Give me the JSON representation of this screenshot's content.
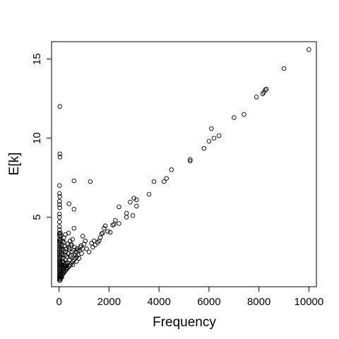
{
  "chart_data": {
    "type": "scatter",
    "title": "",
    "xlabel": "Frequency",
    "ylabel": "E[k]",
    "xlim": [
      -300,
      10300
    ],
    "ylim": [
      0.6,
      16.1
    ],
    "xticks": [
      0,
      2000,
      4000,
      6000,
      8000,
      10000
    ],
    "yticks": [
      5,
      10,
      15
    ],
    "grid": false,
    "marker": "open-circle",
    "colors": {
      "point": "#000000",
      "axis": "#000000",
      "background": "#ffffff"
    },
    "points": [
      [
        10000,
        15.6
      ],
      [
        9000,
        14.4
      ],
      [
        8300,
        13.1
      ],
      [
        8250,
        13.05
      ],
      [
        8200,
        12.9
      ],
      [
        8150,
        12.8
      ],
      [
        7900,
        12.6
      ],
      [
        7400,
        11.5
      ],
      [
        7000,
        11.3
      ],
      [
        6400,
        10.15
      ],
      [
        6200,
        10.0
      ],
      [
        6100,
        10.6
      ],
      [
        6000,
        9.8
      ],
      [
        5800,
        9.35
      ],
      [
        5250,
        8.65
      ],
      [
        5250,
        8.55
      ],
      [
        4500,
        8.0
      ],
      [
        4300,
        7.45
      ],
      [
        4200,
        7.25
      ],
      [
        3800,
        7.25
      ],
      [
        3600,
        6.45
      ],
      [
        3100,
        6.1
      ],
      [
        3100,
        5.7
      ],
      [
        3000,
        6.2
      ],
      [
        2850,
        5.95
      ],
      [
        2950,
        5.1
      ],
      [
        2700,
        5.25
      ],
      [
        2700,
        5.0
      ],
      [
        2400,
        5.65
      ],
      [
        2400,
        4.6
      ],
      [
        2250,
        4.8
      ],
      [
        2200,
        4.55
      ],
      [
        2150,
        4.5
      ],
      [
        2050,
        4.05
      ],
      [
        1950,
        4.1
      ],
      [
        1850,
        4.45
      ],
      [
        1800,
        4.3
      ],
      [
        1750,
        4.0
      ],
      [
        1700,
        3.95
      ],
      [
        1650,
        3.7
      ],
      [
        1600,
        3.5
      ],
      [
        1550,
        3.4
      ],
      [
        1450,
        3.25
      ],
      [
        1400,
        3.5
      ],
      [
        1350,
        3.1
      ],
      [
        1300,
        3.35
      ],
      [
        1250,
        7.25
      ],
      [
        1200,
        2.8
      ],
      [
        1100,
        3.0
      ],
      [
        1050,
        3.5
      ],
      [
        1000,
        3.3
      ],
      [
        950,
        3.8
      ],
      [
        900,
        2.7
      ],
      [
        850,
        3.1
      ],
      [
        800,
        2.4
      ],
      [
        750,
        2.9
      ],
      [
        700,
        2.2
      ],
      [
        650,
        2.6
      ],
      [
        600,
        7.3
      ],
      [
        600,
        5.5
      ],
      [
        600,
        4.3
      ],
      [
        550,
        2.0
      ],
      [
        500,
        3.2
      ],
      [
        450,
        2.5
      ],
      [
        400,
        5.85
      ],
      [
        400,
        3.0
      ],
      [
        380,
        4.0
      ],
      [
        350,
        2.1
      ],
      [
        300,
        1.8
      ],
      [
        250,
        2.6
      ],
      [
        200,
        3.4
      ],
      [
        180,
        1.6
      ],
      [
        150,
        2.2
      ],
      [
        120,
        1.5
      ],
      [
        100,
        2.9
      ],
      [
        80,
        1.4
      ],
      [
        60,
        2.0
      ],
      [
        50,
        1.2
      ],
      [
        30,
        12.0
      ],
      [
        30,
        9.0
      ],
      [
        40,
        8.8
      ],
      [
        20,
        7.0
      ],
      [
        20,
        6.5
      ],
      [
        30,
        6.3
      ],
      [
        20,
        6.0
      ],
      [
        20,
        5.8
      ],
      [
        30,
        5.6
      ],
      [
        20,
        5.2
      ],
      [
        20,
        5.0
      ],
      [
        20,
        4.7
      ],
      [
        20,
        4.4
      ],
      [
        20,
        4.2
      ],
      [
        20,
        4.0
      ],
      [
        20,
        3.9
      ],
      [
        20,
        3.8
      ],
      [
        20,
        3.6
      ],
      [
        20,
        3.5
      ],
      [
        20,
        3.4
      ],
      [
        20,
        3.3
      ],
      [
        20,
        3.2
      ],
      [
        20,
        3.1
      ],
      [
        20,
        3.0
      ],
      [
        20,
        2.9
      ],
      [
        20,
        2.8
      ],
      [
        20,
        2.7
      ],
      [
        20,
        2.6
      ],
      [
        20,
        2.5
      ],
      [
        20,
        2.4
      ],
      [
        20,
        2.3
      ],
      [
        20,
        2.2
      ],
      [
        20,
        2.1
      ],
      [
        20,
        2.0
      ],
      [
        20,
        1.9
      ],
      [
        20,
        1.8
      ],
      [
        20,
        1.7
      ],
      [
        20,
        1.6
      ],
      [
        20,
        1.5
      ],
      [
        20,
        1.4
      ],
      [
        20,
        1.3
      ],
      [
        20,
        1.2
      ],
      [
        20,
        1.1
      ],
      [
        20,
        1.0
      ],
      [
        40,
        1.0
      ],
      [
        60,
        1.1
      ],
      [
        80,
        1.2
      ],
      [
        100,
        1.3
      ],
      [
        150,
        1.4
      ],
      [
        200,
        1.5
      ],
      [
        250,
        1.6
      ],
      [
        300,
        1.7
      ],
      [
        350,
        1.8
      ],
      [
        400,
        1.9
      ],
      [
        450,
        2.0
      ],
      [
        500,
        2.1
      ],
      [
        550,
        2.2
      ],
      [
        600,
        2.3
      ],
      [
        650,
        2.4
      ],
      [
        700,
        2.5
      ],
      [
        80,
        1.8
      ],
      [
        120,
        2.0
      ],
      [
        160,
        2.4
      ],
      [
        200,
        2.0
      ],
      [
        240,
        2.3
      ],
      [
        280,
        2.1
      ],
      [
        320,
        2.5
      ],
      [
        360,
        2.7
      ],
      [
        420,
        2.3
      ],
      [
        480,
        2.6
      ],
      [
        520,
        2.8
      ],
      [
        580,
        2.9
      ],
      [
        100,
        3.0
      ],
      [
        140,
        2.6
      ],
      [
        180,
        2.9
      ],
      [
        220,
        3.2
      ],
      [
        260,
        2.8
      ],
      [
        300,
        3.0
      ],
      [
        340,
        3.3
      ],
      [
        380,
        3.1
      ],
      [
        440,
        3.5
      ],
      [
        480,
        3.3
      ],
      [
        540,
        3.6
      ],
      [
        620,
        3.1
      ],
      [
        680,
        2.8
      ],
      [
        720,
        3.0
      ],
      [
        760,
        2.6
      ],
      [
        820,
        2.9
      ],
      [
        880,
        3.2
      ],
      [
        940,
        3.0
      ],
      [
        60,
        1.5
      ],
      [
        100,
        1.7
      ],
      [
        140,
        1.9
      ],
      [
        40,
        1.3
      ],
      [
        70,
        1.6
      ],
      [
        110,
        1.2
      ],
      [
        130,
        2.2
      ],
      [
        170,
        1.8
      ],
      [
        210,
        1.7
      ],
      [
        230,
        1.9
      ],
      [
        270,
        2.0
      ],
      [
        310,
        1.9
      ],
      [
        50,
        2.2
      ],
      [
        70,
        2.5
      ],
      [
        90,
        2.7
      ],
      [
        110,
        3.2
      ],
      [
        60,
        3.5
      ],
      [
        80,
        3.8
      ],
      [
        50,
        4.0
      ],
      [
        70,
        2.0
      ],
      [
        90,
        1.9
      ],
      [
        150,
        3.5
      ],
      [
        190,
        3.7
      ],
      [
        250,
        3.9
      ]
    ]
  }
}
